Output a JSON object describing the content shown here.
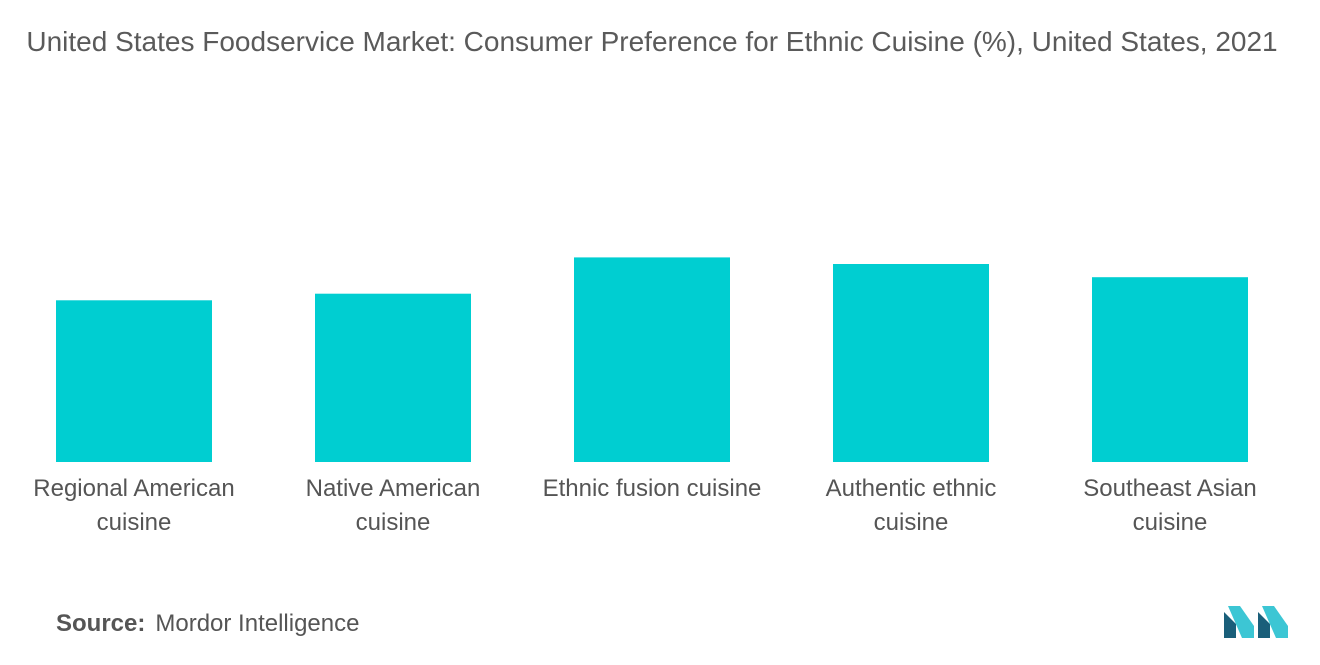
{
  "chart_data": {
    "type": "bar",
    "title": "United States Foodservice Market: Consumer Preference for Ethnic Cuisine (%), United States, 2021",
    "categories": [
      "Regional American cuisine",
      "Native American cuisine",
      "Ethnic fusion cuisine",
      "Authentic ethnic cuisine",
      "Southeast Asian cuisine"
    ],
    "values": [
      49,
      51,
      62,
      60,
      56
    ],
    "ylim": [
      0,
      100
    ],
    "grid": false,
    "legend": "none",
    "bar_color": "#00CED1"
  },
  "source": {
    "label": "Source:",
    "text": "Mordor Intelligence"
  },
  "colors": {
    "bar": "#00CED1",
    "logo_dark": "#1a5f7a",
    "logo_light": "#3cc6d4"
  }
}
